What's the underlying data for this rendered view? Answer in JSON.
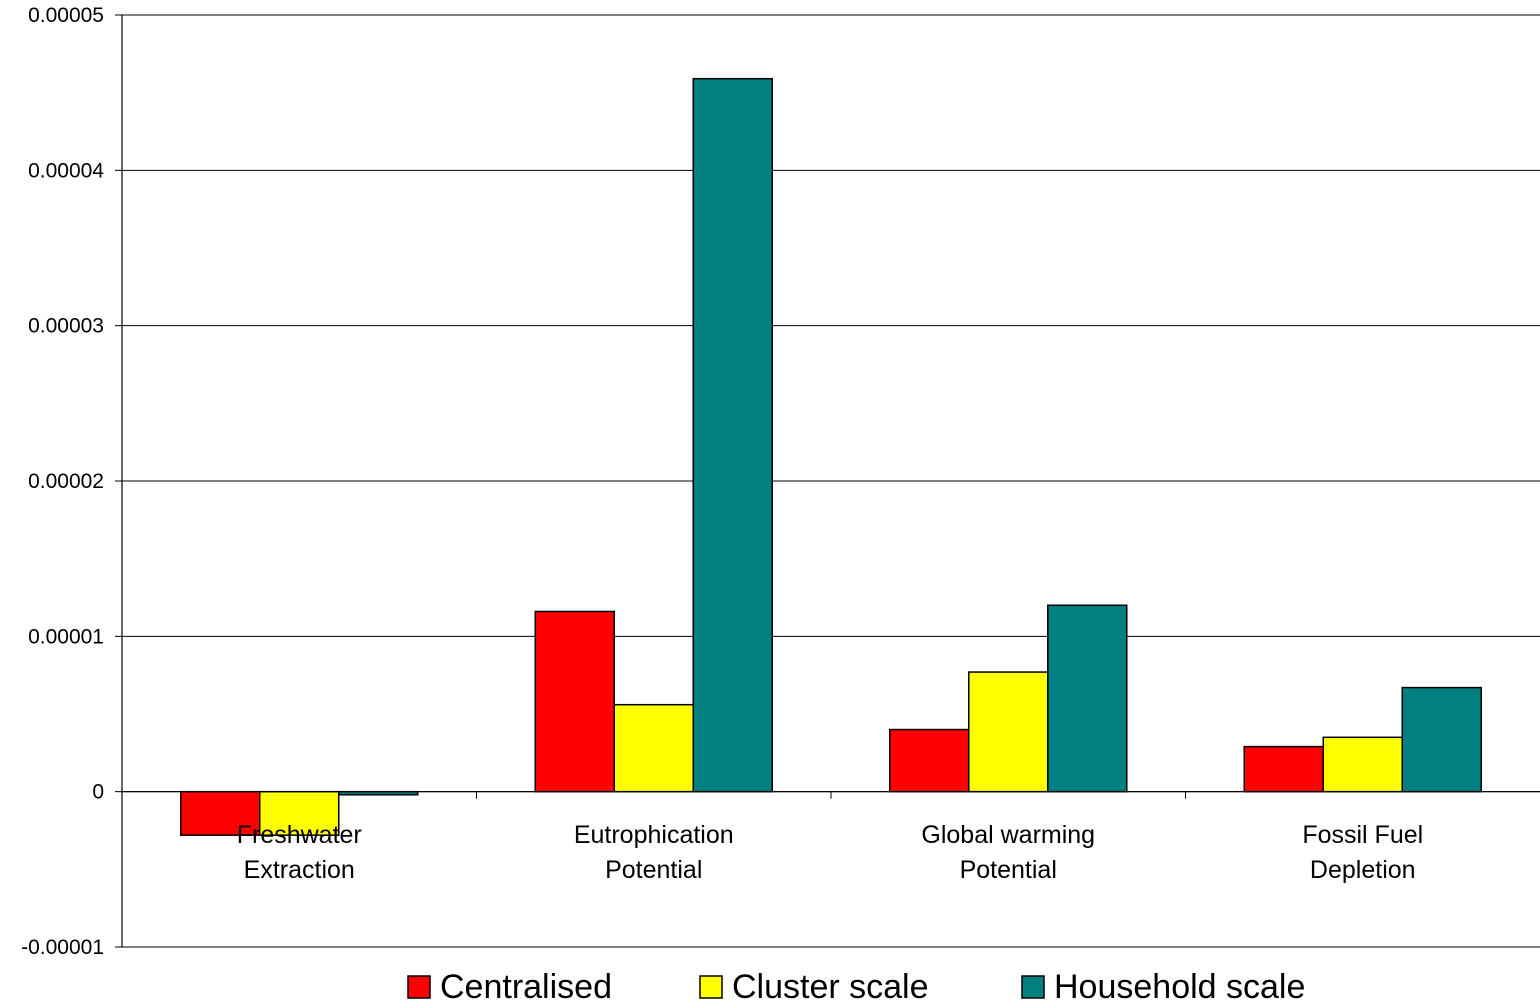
{
  "chart_data": {
    "type": "bar",
    "title": "",
    "xlabel": "",
    "ylabel": "",
    "categories": [
      [
        "Freshwater",
        "Extraction"
      ],
      [
        "Eutrophication",
        "Potential"
      ],
      [
        "Global warming",
        "Potential"
      ],
      [
        "Fossil Fuel",
        "Depletion"
      ]
    ],
    "series": [
      {
        "name": "Centralised",
        "color": "#ff0000",
        "values": [
          -2.8e-06,
          1.16e-05,
          4e-06,
          2.9e-06
        ]
      },
      {
        "name": "Cluster scale",
        "color": "#ffff00",
        "values": [
          -2.8e-06,
          5.6e-06,
          7.7e-06,
          3.5e-06
        ]
      },
      {
        "name": "Household scale",
        "color": "#008080",
        "values": [
          -2e-07,
          4.59e-05,
          1.2e-05,
          6.7e-06
        ]
      }
    ],
    "ylim": [
      -1e-05,
      5e-05
    ],
    "yticks": [
      {
        "value": 5e-05,
        "label": "0.00005"
      },
      {
        "value": 4e-05,
        "label": "0.00004"
      },
      {
        "value": 3e-05,
        "label": "0.00003"
      },
      {
        "value": 2e-05,
        "label": "0.00002"
      },
      {
        "value": 1e-05,
        "label": "0.00001"
      },
      {
        "value": 0,
        "label": "0"
      },
      {
        "value": -1e-05,
        "label": "-0.00001"
      }
    ],
    "grid": true,
    "legend_position": "bottom"
  }
}
